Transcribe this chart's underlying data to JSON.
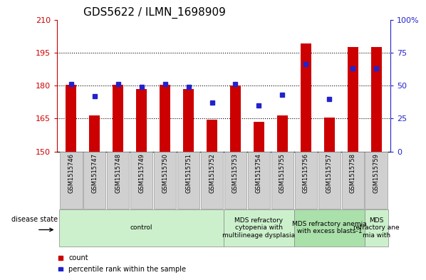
{
  "title": "GDS5622 / ILMN_1698909",
  "samples": [
    "GSM1515746",
    "GSM1515747",
    "GSM1515748",
    "GSM1515749",
    "GSM1515750",
    "GSM1515751",
    "GSM1515752",
    "GSM1515753",
    "GSM1515754",
    "GSM1515755",
    "GSM1515756",
    "GSM1515757",
    "GSM1515758",
    "GSM1515759"
  ],
  "bar_values": [
    180.5,
    166.5,
    180.5,
    178.5,
    180.5,
    178.5,
    164.5,
    180.0,
    163.5,
    166.5,
    199.0,
    165.5,
    197.5,
    197.5
  ],
  "dot_pcts": [
    51,
    42,
    51,
    49,
    51,
    49,
    37,
    51,
    35,
    43,
    66,
    40,
    63,
    63
  ],
  "ylim_left": [
    150,
    210
  ],
  "ylim_right": [
    0,
    100
  ],
  "yticks_left": [
    150,
    165,
    180,
    195,
    210
  ],
  "yticks_right": [
    0,
    25,
    50,
    75,
    100
  ],
  "grid_values": [
    165,
    180,
    195
  ],
  "bar_color": "#cc0000",
  "dot_color": "#2222cc",
  "bar_bottom": 150,
  "bar_width": 0.45,
  "disease_groups": [
    {
      "label": "control",
      "start": 0,
      "end": 7,
      "color": "#ccf0cc"
    },
    {
      "label": "MDS refractory\ncytopenia with\nmultilineage dysplasia",
      "start": 7,
      "end": 10,
      "color": "#ccf0cc"
    },
    {
      "label": "MDS refractory anemia\nwith excess blasts-1",
      "start": 10,
      "end": 13,
      "color": "#aae0aa"
    },
    {
      "label": "MDS\nrefractory ane\nmia with",
      "start": 13,
      "end": 14,
      "color": "#ccf0cc"
    }
  ],
  "disease_state_label": "disease state",
  "legend_count_label": "count",
  "legend_pct_label": "percentile rank within the sample",
  "plot_bg_color": "#ffffff",
  "title_fontsize": 11,
  "tick_fontsize": 8,
  "sample_fontsize": 6,
  "group_fontsize": 6.5,
  "legend_fontsize": 7,
  "ds_label_fontsize": 7
}
